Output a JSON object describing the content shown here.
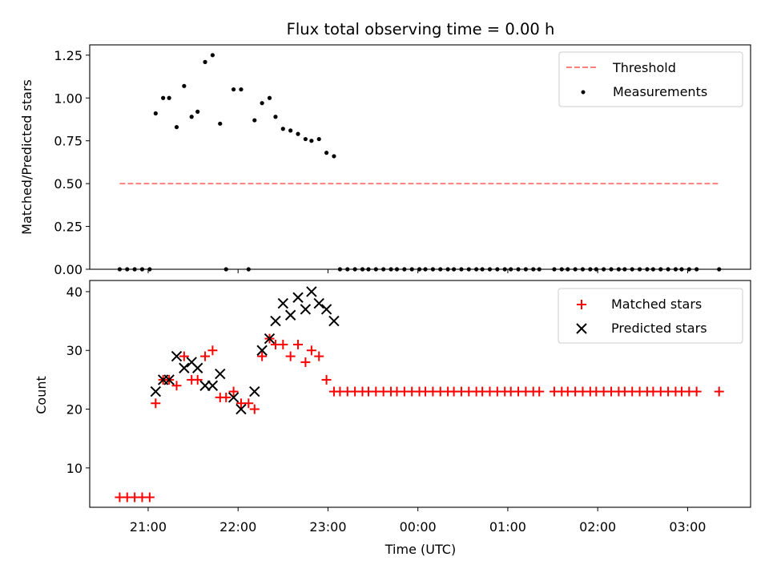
{
  "chart_data": [
    {
      "type": "scatter",
      "title": "Flux total observing time = 0.00 h",
      "xlabel": "",
      "ylabel": "Matched/Predicted stars",
      "x_unit": "time (UTC)",
      "xlim": [
        "20:21",
        "03:42"
      ],
      "ylim": [
        0,
        1.31
      ],
      "yticks": [
        0.0,
        0.25,
        0.5,
        0.75,
        1.0,
        1.25
      ],
      "ytick_labels": [
        "0.00",
        "0.25",
        "0.50",
        "0.75",
        "1.00",
        "1.25"
      ],
      "legend_position": "top-right",
      "legend": [
        "Threshold",
        "Measurements"
      ],
      "threshold": {
        "name": "Threshold",
        "value": 0.5,
        "x_start": "20:41",
        "x_end": "03:21",
        "color": "#ff7f7f",
        "style": "dashed"
      },
      "series": [
        {
          "name": "Measurements",
          "marker": "dot",
          "color": "#000000",
          "points": [
            [
              "20:41",
              0.0
            ],
            [
              "20:46",
              0.0
            ],
            [
              "20:51",
              0.0
            ],
            [
              "20:56",
              0.0
            ],
            [
              "21:01",
              0.0
            ],
            [
              "21:05",
              0.91
            ],
            [
              "21:10",
              1.0
            ],
            [
              "21:14",
              1.0
            ],
            [
              "21:19",
              0.83
            ],
            [
              "21:24",
              1.07
            ],
            [
              "21:29",
              0.89
            ],
            [
              "21:33",
              0.92
            ],
            [
              "21:38",
              1.21
            ],
            [
              "21:43",
              1.25
            ],
            [
              "21:48",
              0.85
            ],
            [
              "21:52",
              0.0
            ],
            [
              "21:57",
              1.05
            ],
            [
              "22:02",
              1.05
            ],
            [
              "22:07",
              0.0
            ],
            [
              "22:11",
              0.87
            ],
            [
              "22:16",
              0.97
            ],
            [
              "22:21",
              1.0
            ],
            [
              "22:25",
              0.89
            ],
            [
              "22:30",
              0.82
            ],
            [
              "22:35",
              0.81
            ],
            [
              "22:40",
              0.79
            ],
            [
              "22:45",
              0.76
            ],
            [
              "22:49",
              0.75
            ],
            [
              "22:54",
              0.76
            ],
            [
              "22:59",
              0.68
            ],
            [
              "23:04",
              0.66
            ],
            [
              "23:08",
              0.0
            ],
            [
              "23:13",
              0.0
            ],
            [
              "23:18",
              0.0
            ],
            [
              "23:23",
              0.0
            ],
            [
              "23:27",
              0.0
            ],
            [
              "23:32",
              0.0
            ],
            [
              "23:37",
              0.0
            ],
            [
              "23:42",
              0.0
            ],
            [
              "23:46",
              0.0
            ],
            [
              "23:51",
              0.0
            ],
            [
              "23:56",
              0.0
            ],
            [
              "00:01",
              0.0
            ],
            [
              "00:05",
              0.0
            ],
            [
              "00:10",
              0.0
            ],
            [
              "00:15",
              0.0
            ],
            [
              "00:20",
              0.0
            ],
            [
              "00:24",
              0.0
            ],
            [
              "00:29",
              0.0
            ],
            [
              "00:34",
              0.0
            ],
            [
              "00:39",
              0.0
            ],
            [
              "00:43",
              0.0
            ],
            [
              "00:48",
              0.0
            ],
            [
              "00:53",
              0.0
            ],
            [
              "00:58",
              0.0
            ],
            [
              "01:02",
              0.0
            ],
            [
              "01:07",
              0.0
            ],
            [
              "01:12",
              0.0
            ],
            [
              "01:17",
              0.0
            ],
            [
              "01:21",
              0.0
            ],
            [
              "01:31",
              0.0
            ],
            [
              "01:36",
              0.0
            ],
            [
              "01:40",
              0.0
            ],
            [
              "01:45",
              0.0
            ],
            [
              "01:50",
              0.0
            ],
            [
              "01:55",
              0.0
            ],
            [
              "01:59",
              0.0
            ],
            [
              "02:04",
              0.0
            ],
            [
              "02:09",
              0.0
            ],
            [
              "02:14",
              0.0
            ],
            [
              "02:18",
              0.0
            ],
            [
              "02:23",
              0.0
            ],
            [
              "02:28",
              0.0
            ],
            [
              "02:33",
              0.0
            ],
            [
              "02:37",
              0.0
            ],
            [
              "02:42",
              0.0
            ],
            [
              "02:47",
              0.0
            ],
            [
              "02:52",
              0.0
            ],
            [
              "02:56",
              0.0
            ],
            [
              "03:01",
              0.0
            ],
            [
              "03:06",
              0.0
            ],
            [
              "03:21",
              0.0
            ]
          ]
        }
      ]
    },
    {
      "type": "scatter",
      "title": "",
      "xlabel": "Time (UTC)",
      "ylabel": "Count",
      "x_unit": "time (UTC)",
      "xlim": [
        "20:21",
        "03:42"
      ],
      "ylim": [
        3.3,
        41.9
      ],
      "yticks": [
        10,
        20,
        30,
        40
      ],
      "ytick_labels": [
        "10",
        "20",
        "30",
        "40"
      ],
      "xticks": [
        "21:00",
        "22:00",
        "23:00",
        "00:00",
        "01:00",
        "02:00",
        "03:00"
      ],
      "xtick_labels": [
        "21:00",
        "22:00",
        "23:00",
        "00:00",
        "01:00",
        "02:00",
        "03:00"
      ],
      "legend_position": "top-right",
      "legend": [
        "Matched stars",
        "Predicted stars"
      ],
      "series": [
        {
          "name": "Matched stars",
          "marker": "plus",
          "color": "#ff0000",
          "points": [
            [
              "20:41",
              5
            ],
            [
              "20:46",
              5
            ],
            [
              "20:51",
              5
            ],
            [
              "20:56",
              5
            ],
            [
              "21:01",
              5
            ],
            [
              "21:05",
              21
            ],
            [
              "21:10",
              25
            ],
            [
              "21:14",
              25
            ],
            [
              "21:19",
              24
            ],
            [
              "21:24",
              29
            ],
            [
              "21:29",
              25
            ],
            [
              "21:33",
              25
            ],
            [
              "21:38",
              29
            ],
            [
              "21:43",
              30
            ],
            [
              "21:48",
              22
            ],
            [
              "21:52",
              22
            ],
            [
              "21:57",
              23
            ],
            [
              "22:02",
              21
            ],
            [
              "22:07",
              21
            ],
            [
              "22:11",
              20
            ],
            [
              "22:16",
              29
            ],
            [
              "22:21",
              32
            ],
            [
              "22:25",
              31
            ],
            [
              "22:30",
              31
            ],
            [
              "22:35",
              29
            ],
            [
              "22:40",
              31
            ],
            [
              "22:45",
              28
            ],
            [
              "22:49",
              30
            ],
            [
              "22:54",
              29
            ],
            [
              "22:59",
              25
            ],
            [
              "23:04",
              23
            ],
            [
              "23:08",
              23
            ],
            [
              "23:13",
              23
            ],
            [
              "23:18",
              23
            ],
            [
              "23:23",
              23
            ],
            [
              "23:27",
              23
            ],
            [
              "23:32",
              23
            ],
            [
              "23:37",
              23
            ],
            [
              "23:42",
              23
            ],
            [
              "23:46",
              23
            ],
            [
              "23:51",
              23
            ],
            [
              "23:56",
              23
            ],
            [
              "00:01",
              23
            ],
            [
              "00:05",
              23
            ],
            [
              "00:10",
              23
            ],
            [
              "00:15",
              23
            ],
            [
              "00:20",
              23
            ],
            [
              "00:24",
              23
            ],
            [
              "00:29",
              23
            ],
            [
              "00:34",
              23
            ],
            [
              "00:39",
              23
            ],
            [
              "00:43",
              23
            ],
            [
              "00:48",
              23
            ],
            [
              "00:53",
              23
            ],
            [
              "00:58",
              23
            ],
            [
              "01:02",
              23
            ],
            [
              "01:07",
              23
            ],
            [
              "01:12",
              23
            ],
            [
              "01:17",
              23
            ],
            [
              "01:21",
              23
            ],
            [
              "01:31",
              23
            ],
            [
              "01:36",
              23
            ],
            [
              "01:40",
              23
            ],
            [
              "01:45",
              23
            ],
            [
              "01:50",
              23
            ],
            [
              "01:55",
              23
            ],
            [
              "01:59",
              23
            ],
            [
              "02:04",
              23
            ],
            [
              "02:09",
              23
            ],
            [
              "02:14",
              23
            ],
            [
              "02:18",
              23
            ],
            [
              "02:23",
              23
            ],
            [
              "02:28",
              23
            ],
            [
              "02:33",
              23
            ],
            [
              "02:37",
              23
            ],
            [
              "02:42",
              23
            ],
            [
              "02:47",
              23
            ],
            [
              "02:52",
              23
            ],
            [
              "02:56",
              23
            ],
            [
              "03:01",
              23
            ],
            [
              "03:06",
              23
            ],
            [
              "03:21",
              23
            ]
          ]
        },
        {
          "name": "Predicted stars",
          "marker": "x",
          "color": "#000000",
          "points": [
            [
              "21:05",
              23
            ],
            [
              "21:10",
              25
            ],
            [
              "21:14",
              25
            ],
            [
              "21:19",
              29
            ],
            [
              "21:24",
              27
            ],
            [
              "21:29",
              28
            ],
            [
              "21:33",
              27
            ],
            [
              "21:38",
              24
            ],
            [
              "21:43",
              24
            ],
            [
              "21:48",
              26
            ],
            [
              "21:57",
              22
            ],
            [
              "22:02",
              20
            ],
            [
              "22:11",
              23
            ],
            [
              "22:16",
              30
            ],
            [
              "22:21",
              32
            ],
            [
              "22:25",
              35
            ],
            [
              "22:30",
              38
            ],
            [
              "22:35",
              36
            ],
            [
              "22:40",
              39
            ],
            [
              "22:45",
              37
            ],
            [
              "22:49",
              40
            ],
            [
              "22:54",
              38
            ],
            [
              "22:59",
              37
            ],
            [
              "23:04",
              35
            ]
          ]
        }
      ]
    }
  ]
}
